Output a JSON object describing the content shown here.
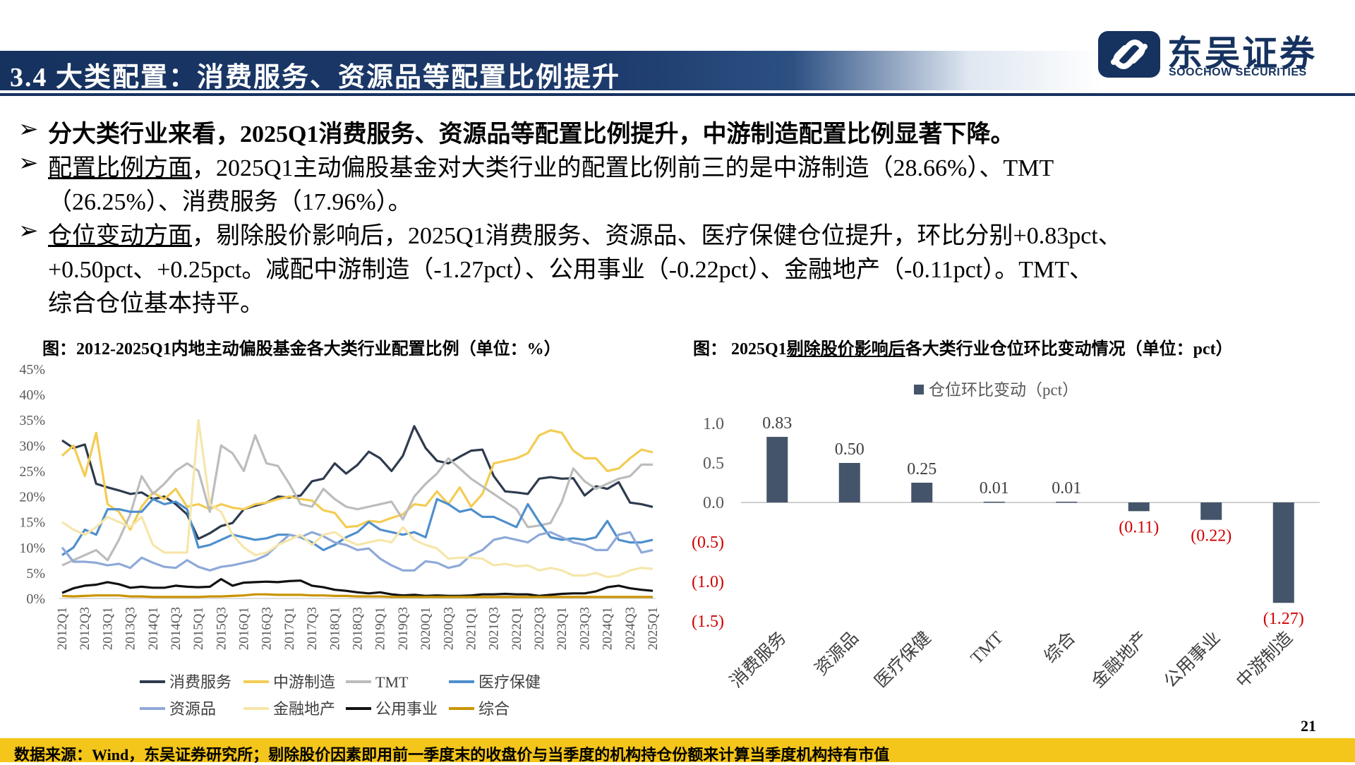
{
  "header": {
    "title": "3.4 大类配置：消费服务、资源品等配置比例提升",
    "logo_cn": "东吴证券",
    "logo_en": "SOOCHOW SECURITIES"
  },
  "bullets": {
    "b1": "分大类行业来看，2025Q1消费服务、资源品等配置比例提升，中游制造配置比例显著下降。",
    "b2_u": "配置比例方面",
    "b2_rest": "，2025Q1主动偏股基金对大类行业的配置比例前三的是中游制造（28.66%）、TMT",
    "b2_line2": "（26.25%）、消费服务（17.96%）。",
    "b3_u": "仓位变动方面",
    "b3_rest": "，剔除股价影响后，2025Q1消费服务、资源品、医疗保健仓位提升，环比分别+0.83pct、",
    "b3_line2": "+0.50pct、+0.25pct。减配中游制造（-1.27pct）、公用事业（-0.22pct）、金融地产（-0.11pct）。TMT、",
    "b3_line3": "综合仓位基本持平。"
  },
  "left_chart": {
    "title": "图：2012-2025Q1内地主动偏股基金各大类行业配置比例（单位：%）"
  },
  "right_chart": {
    "title_pre": "图：  2025Q1",
    "title_u": "剔除股价影响后",
    "title_post": "各大类行业仓位环比变动情况（单位：pct）"
  },
  "footer": {
    "source": "数据来源：Wind，东吴证券研究所；剔除股价因素即用前一季度末的收盘价与当季度的机构持仓份额来计算当季度机构持有市值",
    "page": "21"
  },
  "colors": {
    "navy": "#16325f",
    "bar": "#44546a",
    "negative_label": "#d00000",
    "footer": "#f4c51a"
  },
  "chart_data": [
    {
      "type": "line",
      "x": [
        "2012Q1",
        "2012Q2",
        "2012Q3",
        "2012Q4",
        "2013Q1",
        "2013Q2",
        "2013Q3",
        "2013Q4",
        "2014Q1",
        "2014Q2",
        "2014Q3",
        "2014Q4",
        "2015Q1",
        "2015Q2",
        "2015Q3",
        "2015Q4",
        "2016Q1",
        "2016Q2",
        "2016Q3",
        "2016Q4",
        "2017Q1",
        "2017Q2",
        "2017Q3",
        "2017Q4",
        "2018Q1",
        "2018Q2",
        "2018Q3",
        "2018Q4",
        "2019Q1",
        "2019Q2",
        "2019Q3",
        "2019Q4",
        "2020Q1",
        "2020Q2",
        "2020Q3",
        "2020Q4",
        "2021Q1",
        "2021Q2",
        "2021Q3",
        "2021Q4",
        "2022Q1",
        "2022Q2",
        "2022Q3",
        "2022Q4",
        "2023Q1",
        "2023Q2",
        "2023Q3",
        "2023Q4",
        "2024Q1",
        "2024Q2",
        "2024Q3",
        "2024Q4",
        "2025Q1"
      ],
      "x_tick_labels": [
        "2012Q1",
        "2012Q3",
        "2013Q1",
        "2013Q3",
        "2014Q1",
        "2014Q3",
        "2015Q1",
        "2015Q3",
        "2016Q1",
        "2016Q3",
        "2017Q1",
        "2017Q3",
        "2018Q1",
        "2018Q3",
        "2019Q1",
        "2019Q3",
        "2020Q1",
        "2020Q3",
        "2021Q1",
        "2021Q3",
        "2022Q1",
        "2022Q3",
        "2023Q1",
        "2023Q3",
        "2024Q1",
        "2024Q3",
        "2025Q1"
      ],
      "y_ticks": [
        "0%",
        "5%",
        "10%",
        "15%",
        "20%",
        "25%",
        "30%",
        "35%",
        "40%",
        "45%"
      ],
      "ylim": [
        0,
        45
      ],
      "legend_position": "bottom",
      "series": [
        {
          "name": "消费服务",
          "color": "#2e3b4e",
          "values": [
            31,
            29.5,
            30.2,
            22.5,
            21.8,
            21.2,
            20.5,
            20.8,
            19.5,
            20,
            18.5,
            16.5,
            11.7,
            12.8,
            14.2,
            14.8,
            17.5,
            18.2,
            18.8,
            20,
            19.8,
            20.2,
            23,
            23.5,
            26.5,
            24.5,
            26.2,
            28.8,
            27.5,
            25,
            28,
            33.8,
            29.5,
            27,
            26.5,
            27.8,
            29,
            29.2,
            24,
            21,
            20.8,
            20.5,
            23.5,
            23.8,
            23.5,
            23.6,
            20.2,
            22,
            21.5,
            22.8,
            18.8,
            18.5,
            17.96
          ]
        },
        {
          "name": "中游制造",
          "color": "#f3cc52",
          "values": [
            28,
            30,
            24,
            32.5,
            18.5,
            17,
            13.5,
            18,
            20.8,
            19.5,
            21.5,
            18,
            18.5,
            17.5,
            18.5,
            17.8,
            17.5,
            18.5,
            18.8,
            19.5,
            20,
            19.5,
            19.2,
            17.3,
            16.8,
            14,
            14.2,
            15.2,
            15,
            15.8,
            16.5,
            18.5,
            18.2,
            21,
            18.5,
            21.8,
            18,
            20.5,
            26.5,
            27,
            27.5,
            28.5,
            32,
            33,
            32.5,
            29,
            27.5,
            27.5,
            25,
            25.5,
            27.5,
            29.2,
            28.66
          ]
        },
        {
          "name": "TMT",
          "color": "#bcbcbc",
          "values": [
            6.5,
            7.5,
            8.5,
            9.5,
            7.5,
            11.5,
            16.5,
            24,
            20.5,
            22.5,
            25,
            26.5,
            25,
            17,
            30,
            28.5,
            25,
            32,
            26.5,
            26,
            22.5,
            18.5,
            18,
            21.5,
            19.5,
            18,
            17.5,
            18,
            18.5,
            19,
            15.5,
            20,
            22.5,
            24.5,
            27.5,
            25.5,
            23.5,
            22,
            20.5,
            19,
            17.5,
            14,
            14.3,
            14.8,
            19,
            25.5,
            23,
            21.5,
            22.5,
            23.5,
            24,
            26.25,
            26.25
          ]
        },
        {
          "name": "医疗保健",
          "color": "#4e8fcd",
          "values": [
            8.5,
            10,
            13.5,
            12.5,
            17.5,
            17.5,
            17,
            17,
            19.5,
            18.5,
            19,
            17.5,
            10,
            10.5,
            11.5,
            12.5,
            12,
            11.5,
            11.8,
            12.5,
            12.5,
            12,
            11,
            9.5,
            10.5,
            12,
            13,
            15,
            13.5,
            13,
            12.5,
            13,
            12,
            19.5,
            18.5,
            17,
            17.5,
            16,
            16,
            15,
            14,
            18.5,
            15,
            12,
            11.5,
            11.8,
            11.5,
            12,
            15.2,
            11.5,
            11,
            11,
            11.5
          ]
        },
        {
          "name": "资源品",
          "color": "#8ea9d8",
          "values": [
            10,
            7.2,
            7.2,
            7,
            6.5,
            6.8,
            6,
            8,
            7,
            6.2,
            6,
            7.5,
            6.2,
            5.5,
            6.2,
            6.5,
            7,
            7.5,
            8.5,
            10.5,
            12.5,
            12,
            13,
            12.2,
            11,
            10.5,
            9.5,
            9.8,
            7.8,
            6.5,
            5.5,
            5.5,
            7.3,
            7,
            6,
            6.5,
            8.5,
            9.5,
            11.5,
            12,
            11.5,
            11,
            12.5,
            13,
            12,
            11,
            10.5,
            9.5,
            9.5,
            12.5,
            13,
            9,
            9.5
          ]
        },
        {
          "name": "金融地产",
          "color": "#f6e6aa",
          "values": [
            15,
            13.5,
            12.5,
            14,
            16,
            15,
            14,
            16,
            10.5,
            9,
            9,
            9,
            35,
            18.5,
            17,
            12.5,
            10,
            8.5,
            9,
            10.5,
            11.5,
            12.5,
            10.5,
            12.5,
            13,
            11.5,
            10.5,
            11,
            11.5,
            11,
            14,
            11.5,
            10.5,
            9.8,
            7.8,
            8,
            8,
            7.8,
            6.5,
            6.8,
            6.3,
            6.5,
            5.5,
            6,
            5.5,
            4.5,
            4.5,
            5,
            4.2,
            4.5,
            5.5,
            6,
            5.8
          ]
        },
        {
          "name": "公用事业",
          "color": "#111111",
          "values": [
            1.1,
            2,
            2.5,
            2.7,
            3.2,
            2.8,
            2.1,
            2.3,
            2.1,
            2.1,
            2.5,
            2.3,
            2.2,
            2.3,
            3.8,
            2.5,
            3.1,
            3.2,
            3.3,
            3.2,
            3.4,
            3.5,
            2.5,
            2.2,
            1.7,
            1.5,
            1.2,
            1,
            1.2,
            0.8,
            0.6,
            0.7,
            0.5,
            0.6,
            0.5,
            0.5,
            0.6,
            0.8,
            0.8,
            0.9,
            0.8,
            0.8,
            0.5,
            0.7,
            0.9,
            1,
            1,
            1.4,
            2.2,
            2.5,
            2,
            1.7,
            1.5
          ]
        },
        {
          "name": "综合",
          "color": "#c99400",
          "values": [
            0.5,
            0.4,
            0.5,
            0.6,
            0.6,
            0.6,
            0.4,
            0.4,
            0.3,
            0.3,
            0.3,
            0.3,
            0.3,
            0.4,
            0.4,
            0.5,
            0.6,
            0.8,
            0.8,
            0.7,
            0.7,
            0.7,
            0.6,
            0.6,
            0.5,
            0.5,
            0.4,
            0.4,
            0.4,
            0.3,
            0.3,
            0.3,
            0.3,
            0.3,
            0.3,
            0.3,
            0.3,
            0.3,
            0.3,
            0.3,
            0.3,
            0.3,
            0.3,
            0.3,
            0.3,
            0.3,
            0.3,
            0.3,
            0.3,
            0.3,
            0.3,
            0.3,
            0.3
          ]
        }
      ]
    },
    {
      "type": "bar",
      "categories": [
        "消费服务",
        "资源品",
        "医疗保健",
        "TMT",
        "综合",
        "金融地产",
        "公用事业",
        "中游制造"
      ],
      "values": [
        0.83,
        0.5,
        0.25,
        0.01,
        0.01,
        -0.11,
        -0.22,
        -1.27
      ],
      "value_labels": [
        "0.83",
        "0.50",
        "0.25",
        "0.01",
        "0.01",
        "(0.11)",
        "(0.22)",
        "(1.27)"
      ],
      "y_ticks": [
        1.0,
        0.5,
        0.0,
        -0.5,
        -1.0,
        -1.5
      ],
      "y_tick_labels": [
        "1.0",
        "0.5",
        "0.0",
        "(0.5)",
        "(1.0)",
        "(1.5)"
      ],
      "ylim": [
        -1.5,
        1.0
      ],
      "legend": [
        "仓位环比变动（pct）"
      ],
      "legend_position": "top",
      "color": "#44546a"
    }
  ]
}
